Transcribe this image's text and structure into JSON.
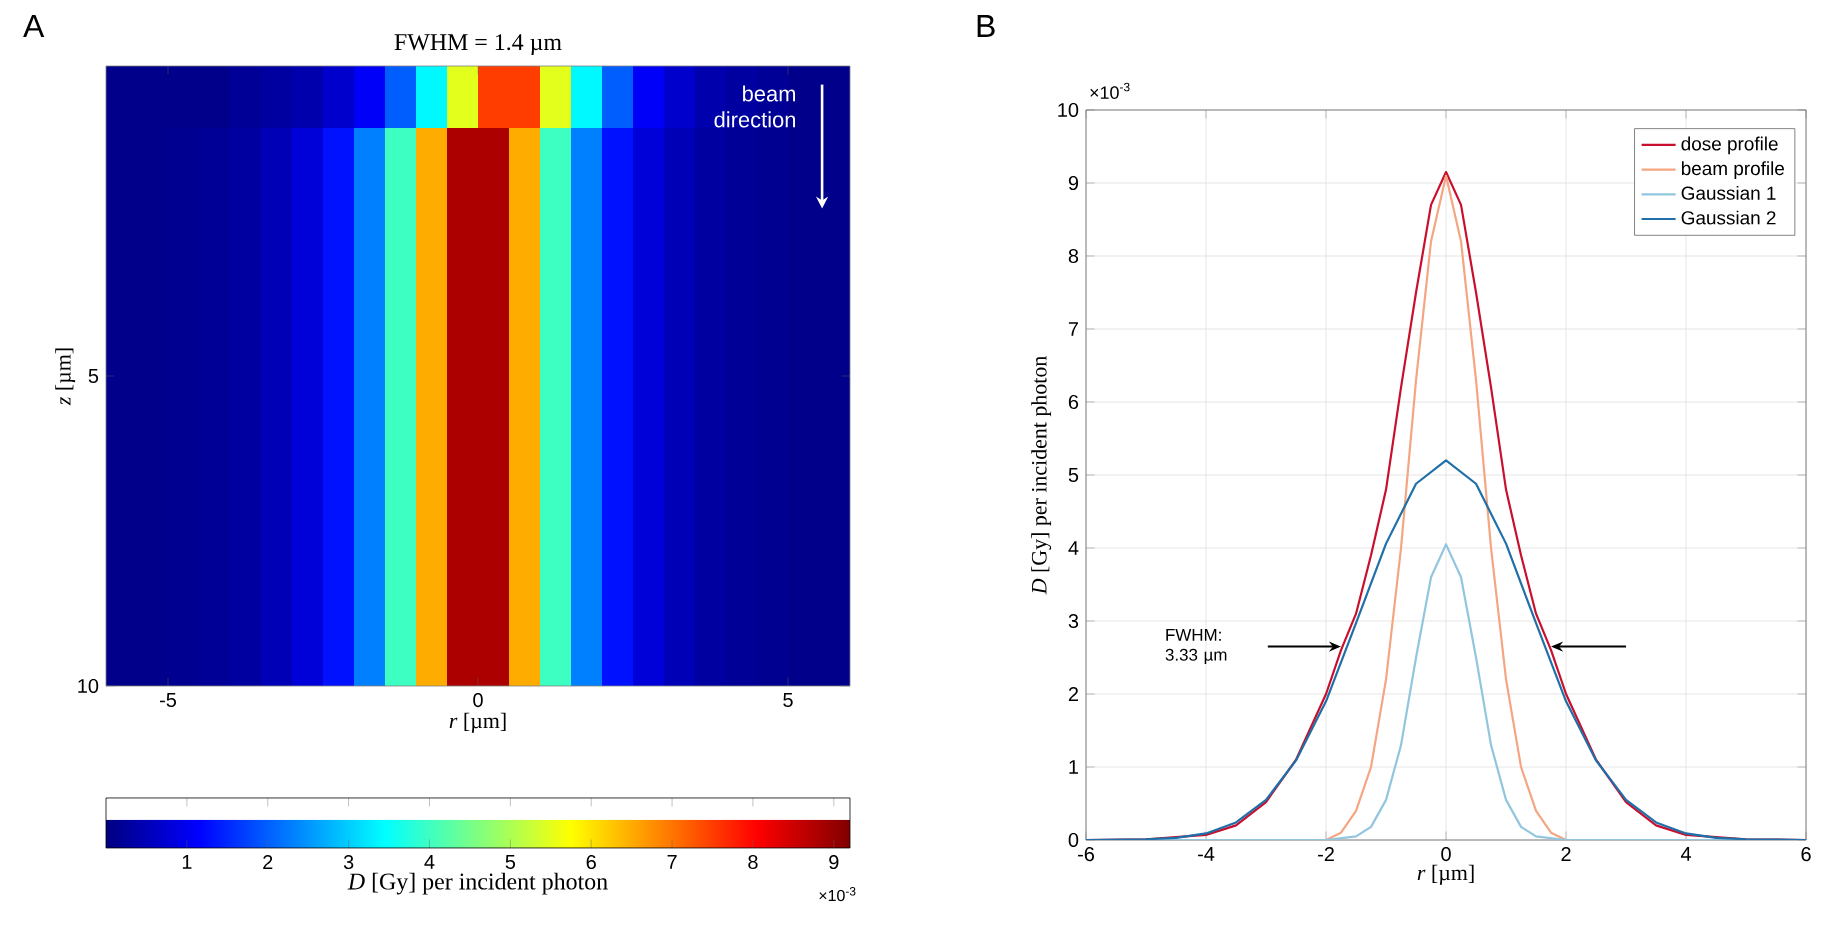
{
  "chart_data": [
    {
      "type": "heatmap",
      "title": "FWHM = 1.4 µm",
      "xlabel": "*r* [µm]",
      "ylabel": "*z* [µm]",
      "clabel": "*D* [Gy] per incident photon",
      "annotations": [
        "A",
        "beam direction",
        "×10$^{-3}$"
      ],
      "xlim": [
        -6,
        6
      ],
      "xticks": [
        -5,
        0,
        5
      ],
      "ylim": [
        10,
        0
      ],
      "yticks": [
        5,
        10
      ],
      "x": [
        -5.75,
        -5.25,
        -4.75,
        -4.25,
        -3.75,
        -3.25,
        -2.75,
        -2.25,
        -1.75,
        -1.25,
        -0.75,
        -0.25,
        0.25,
        0.75,
        1.25,
        1.75,
        2.25,
        2.75,
        3.25,
        3.75,
        4.25,
        4.75,
        5.25,
        5.75
      ],
      "y": [
        0.5,
        1.5,
        2.5,
        3.5,
        4.5,
        5.5,
        6.5,
        7.5,
        8.5,
        9.5
      ],
      "clim": [
        0,
        9.2
      ],
      "cticks": [
        1,
        2,
        3,
        4,
        5,
        6,
        7,
        8,
        9
      ],
      "cells": [
        [
          0.1,
          0.1,
          0.1,
          0.1,
          0.2,
          0.3,
          0.4,
          0.7,
          1.1,
          2.0,
          3.4,
          5.5,
          7.5,
          7.5,
          5.5,
          3.4,
          2.0,
          1.1,
          0.7,
          0.4,
          0.3,
          0.2,
          0.1,
          0.1
        ],
        [
          0.1,
          0.1,
          0.15,
          0.2,
          0.3,
          0.5,
          0.8,
          1.3,
          2.3,
          4.0,
          6.5,
          8.8,
          8.8,
          6.5,
          4.0,
          2.3,
          1.3,
          0.8,
          0.5,
          0.3,
          0.2,
          0.15,
          0.1,
          0.1
        ],
        [
          0.1,
          0.1,
          0.15,
          0.2,
          0.3,
          0.5,
          0.8,
          1.3,
          2.3,
          4.0,
          6.5,
          8.8,
          8.8,
          6.5,
          4.0,
          2.3,
          1.3,
          0.8,
          0.5,
          0.3,
          0.2,
          0.15,
          0.1,
          0.1
        ],
        [
          0.1,
          0.1,
          0.15,
          0.2,
          0.3,
          0.5,
          0.8,
          1.3,
          2.3,
          4.0,
          6.5,
          8.8,
          8.8,
          6.5,
          4.0,
          2.3,
          1.3,
          0.8,
          0.5,
          0.3,
          0.2,
          0.15,
          0.1,
          0.1
        ],
        [
          0.1,
          0.1,
          0.15,
          0.2,
          0.3,
          0.5,
          0.8,
          1.3,
          2.3,
          4.0,
          6.5,
          8.8,
          8.8,
          6.5,
          4.0,
          2.3,
          1.3,
          0.8,
          0.5,
          0.3,
          0.2,
          0.15,
          0.1,
          0.1
        ],
        [
          0.1,
          0.1,
          0.15,
          0.2,
          0.3,
          0.5,
          0.8,
          1.3,
          2.3,
          4.0,
          6.5,
          8.8,
          8.8,
          6.5,
          4.0,
          2.3,
          1.3,
          0.8,
          0.5,
          0.3,
          0.2,
          0.15,
          0.1,
          0.1
        ],
        [
          0.1,
          0.1,
          0.15,
          0.2,
          0.3,
          0.5,
          0.8,
          1.3,
          2.3,
          4.0,
          6.5,
          8.8,
          8.8,
          6.5,
          4.0,
          2.3,
          1.3,
          0.8,
          0.5,
          0.3,
          0.2,
          0.15,
          0.1,
          0.1
        ],
        [
          0.1,
          0.1,
          0.15,
          0.2,
          0.3,
          0.5,
          0.8,
          1.3,
          2.3,
          4.0,
          6.5,
          8.8,
          8.8,
          6.5,
          4.0,
          2.3,
          1.3,
          0.8,
          0.5,
          0.3,
          0.2,
          0.15,
          0.1,
          0.1
        ],
        [
          0.1,
          0.1,
          0.15,
          0.2,
          0.3,
          0.5,
          0.8,
          1.3,
          2.3,
          4.0,
          6.5,
          8.8,
          8.8,
          6.5,
          4.0,
          2.3,
          1.3,
          0.8,
          0.5,
          0.3,
          0.2,
          0.15,
          0.1,
          0.1
        ],
        [
          0.1,
          0.1,
          0.15,
          0.2,
          0.3,
          0.5,
          0.8,
          1.3,
          2.3,
          4.0,
          6.5,
          8.8,
          8.8,
          6.5,
          4.0,
          2.3,
          1.3,
          0.8,
          0.5,
          0.3,
          0.2,
          0.15,
          0.1,
          0.1
        ]
      ]
    },
    {
      "type": "line",
      "xlabel": "*r* [µm]",
      "ylabel": "*D* [Gy] per incident photon",
      "annotations": [
        "B",
        "×10$^{-3}$",
        "FWHM: 3.33 µm"
      ],
      "xlim": [
        -6,
        6
      ],
      "xticks": [
        -6,
        -4,
        -2,
        0,
        2,
        4,
        6
      ],
      "ylim": [
        0,
        10
      ],
      "yticks": [
        0,
        1,
        2,
        3,
        4,
        5,
        6,
        7,
        8,
        9,
        10
      ],
      "grid": true,
      "legend": "top right",
      "marker": "none",
      "line_style": "solid",
      "series": [
        {
          "name": "dose profile",
          "color": "#c8102e",
          "x": [
            -6,
            -5,
            -4,
            -3.5,
            -3,
            -2.5,
            -2,
            -1.75,
            -1.5,
            -1.25,
            -1,
            -0.75,
            -0.5,
            -0.25,
            0,
            0.25,
            0.5,
            0.75,
            1,
            1.25,
            1.5,
            1.75,
            2,
            2.5,
            3,
            3.5,
            4,
            5,
            6
          ],
          "values": [
            0,
            0.01,
            0.07,
            0.2,
            0.52,
            1.1,
            2.0,
            2.6,
            3.1,
            3.9,
            4.8,
            6.2,
            7.5,
            8.7,
            9.15,
            8.7,
            7.5,
            6.2,
            4.8,
            3.9,
            3.1,
            2.6,
            2.0,
            1.1,
            0.52,
            0.2,
            0.07,
            0.01,
            0
          ]
        },
        {
          "name": "beam profile",
          "color": "#f4a582",
          "x": [
            -6,
            -2,
            -1.75,
            -1.5,
            -1.25,
            -1,
            -0.75,
            -0.5,
            -0.25,
            0,
            0.25,
            0.5,
            0.75,
            1,
            1.25,
            1.5,
            1.75,
            2,
            6
          ],
          "values": [
            0,
            0,
            0.1,
            0.4,
            1.0,
            2.2,
            4.0,
            6.3,
            8.2,
            9.1,
            8.2,
            6.3,
            4.0,
            2.2,
            1.0,
            0.4,
            0.1,
            0,
            0
          ]
        },
        {
          "name": "Gaussian 1",
          "color": "#92c5de",
          "x": [
            -6,
            -2,
            -1.5,
            -1.25,
            -1,
            -0.75,
            -0.5,
            -0.25,
            0,
            0.25,
            0.5,
            0.75,
            1,
            1.25,
            1.5,
            2,
            6
          ],
          "values": [
            0,
            0,
            0.05,
            0.18,
            0.55,
            1.3,
            2.5,
            3.6,
            4.05,
            3.6,
            2.5,
            1.3,
            0.55,
            0.18,
            0.05,
            0,
            0
          ]
        },
        {
          "name": "Gaussian 2",
          "color": "#1f6fa8",
          "x": [
            -6,
            -5,
            -4.5,
            -4,
            -3.5,
            -3,
            -2.5,
            -2,
            -1.5,
            -1,
            -0.5,
            0,
            0.5,
            1,
            1.5,
            2,
            2.5,
            3,
            3.5,
            4,
            4.5,
            5,
            6
          ],
          "values": [
            0,
            0.01,
            0.03,
            0.09,
            0.24,
            0.55,
            1.09,
            1.9,
            2.97,
            4.06,
            4.88,
            5.2,
            4.88,
            4.06,
            2.97,
            1.9,
            1.09,
            0.55,
            0.24,
            0.09,
            0.03,
            0.01,
            0
          ]
        }
      ]
    }
  ]
}
